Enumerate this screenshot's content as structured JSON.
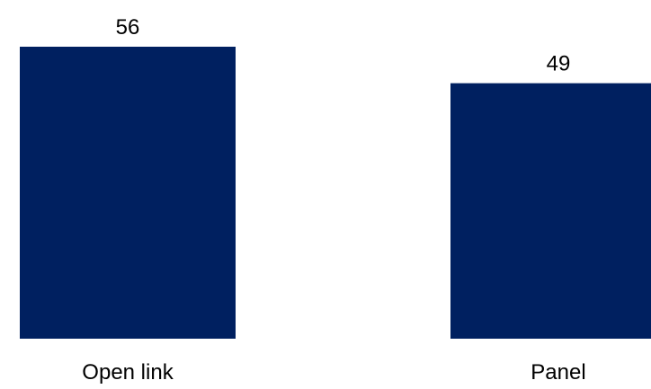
{
  "chart_data": {
    "type": "bar",
    "categories": [
      "Open link",
      "Panel"
    ],
    "values": [
      56,
      49
    ],
    "data_labels": [
      "56",
      "49"
    ],
    "bar_color": "#002060",
    "title": "",
    "xlabel": "",
    "ylabel": "",
    "ylim": [
      0,
      56
    ],
    "grid": false,
    "legend": "none"
  }
}
